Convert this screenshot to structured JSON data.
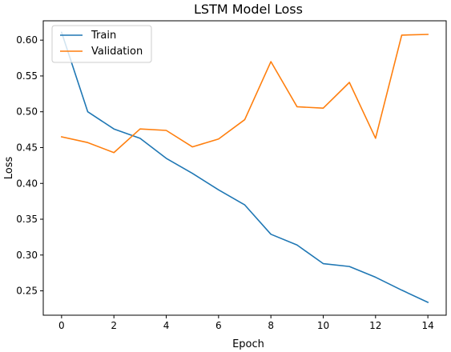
{
  "chart_data": {
    "type": "line",
    "title": "LSTM Model Loss",
    "xlabel": "Epoch",
    "ylabel": "Loss",
    "xlim": [
      -0.7,
      14.7
    ],
    "ylim": [
      0.216,
      0.627
    ],
    "xticks": [
      0,
      2,
      4,
      6,
      8,
      10,
      12,
      14
    ],
    "yticks": [
      0.25,
      0.3,
      0.35,
      0.4,
      0.45,
      0.5,
      0.55,
      0.6
    ],
    "ytick_labels": [
      "0.25",
      "0.30",
      "0.35",
      "0.40",
      "0.45",
      "0.50",
      "0.55",
      "0.60"
    ],
    "grid": false,
    "legend_position": "upper-left",
    "x": [
      0,
      1,
      2,
      3,
      4,
      5,
      6,
      7,
      8,
      9,
      10,
      11,
      12,
      13,
      14
    ],
    "series": [
      {
        "name": "Train",
        "color": "#1f77b4",
        "values": [
          0.611,
          0.5,
          0.476,
          0.463,
          0.435,
          0.414,
          0.391,
          0.37,
          0.329,
          0.314,
          0.288,
          0.284,
          0.269,
          0.251,
          0.234
        ]
      },
      {
        "name": "Validation",
        "color": "#ff7f0e",
        "values": [
          0.465,
          0.457,
          0.443,
          0.476,
          0.474,
          0.451,
          0.462,
          0.489,
          0.57,
          0.507,
          0.505,
          0.541,
          0.463,
          0.607,
          0.608
        ]
      }
    ]
  }
}
